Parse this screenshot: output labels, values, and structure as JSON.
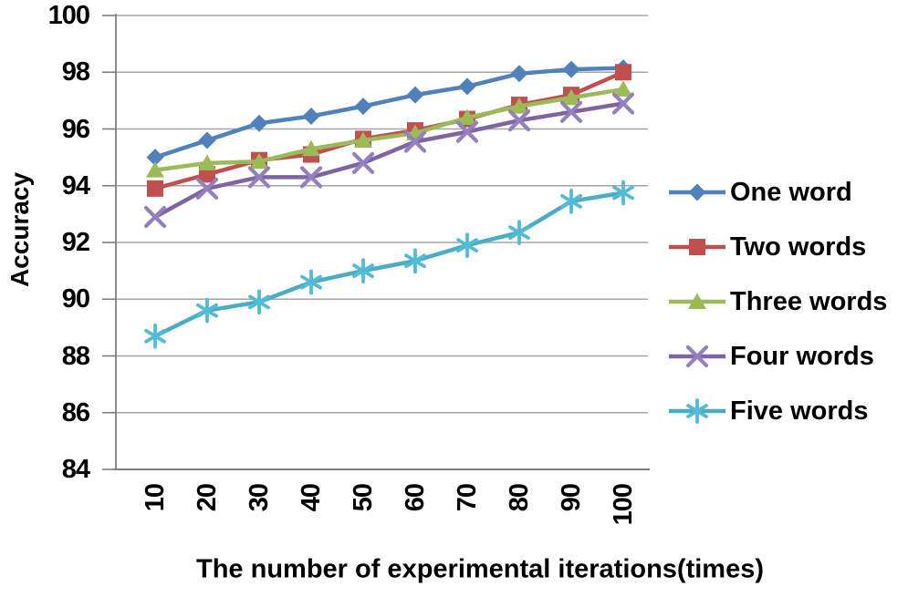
{
  "chart_data": {
    "type": "line",
    "title": "",
    "xlabel": "The number of experimental iterations(times)",
    "ylabel": "Accuracy",
    "x": [
      10,
      20,
      30,
      40,
      50,
      60,
      70,
      80,
      90,
      100
    ],
    "y_ticks": [
      100,
      98,
      96,
      94,
      92,
      90,
      88,
      86,
      84
    ],
    "ylim": [
      84,
      100
    ],
    "xlim_categories": true,
    "grid": "horizontal-major",
    "legend_position": "right",
    "axis_color": "#7f7f7f",
    "gridline_color": "#a6a6a6",
    "text_color": "#000000",
    "background": "#ffffff",
    "series": [
      {
        "name": "One word",
        "marker": "diamond",
        "color": "#4F81BD",
        "values": [
          95.0,
          95.6,
          96.2,
          96.45,
          96.8,
          97.2,
          97.5,
          97.95,
          98.1,
          98.15
        ]
      },
      {
        "name": "Two words",
        "marker": "square",
        "color": "#C0504D",
        "values": [
          93.9,
          94.4,
          94.9,
          95.1,
          95.65,
          95.95,
          96.35,
          96.85,
          97.2,
          98.0
        ]
      },
      {
        "name": "Three words",
        "marker": "triangle",
        "color": "#9BBB59",
        "values": [
          94.55,
          94.8,
          94.85,
          95.3,
          95.6,
          95.85,
          96.4,
          96.8,
          97.1,
          97.4
        ]
      },
      {
        "name": "Four words",
        "marker": "x",
        "color": "#8064A2",
        "marker_color": "#9480BE",
        "values": [
          92.9,
          93.9,
          94.3,
          94.3,
          94.8,
          95.55,
          95.9,
          96.3,
          96.6,
          96.9
        ]
      },
      {
        "name": "Five words",
        "marker": "asterisk",
        "color": "#4BACC6",
        "marker_color": "#52BCD6",
        "values": [
          88.7,
          89.6,
          89.9,
          90.6,
          91.0,
          91.35,
          91.9,
          92.35,
          93.45,
          93.75
        ]
      }
    ]
  }
}
